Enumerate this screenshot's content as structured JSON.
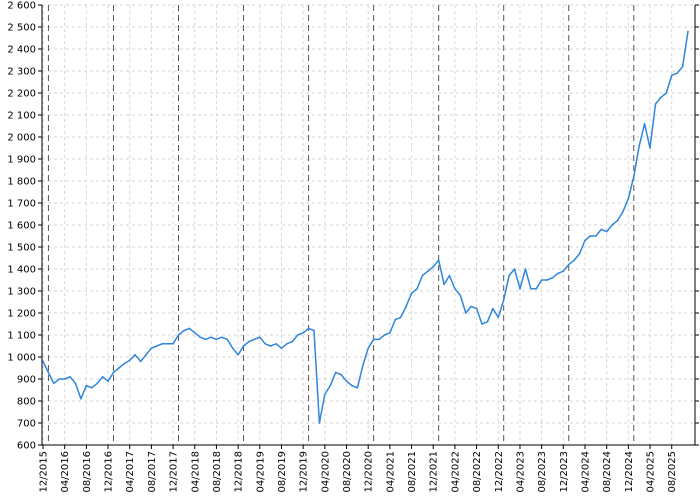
{
  "chart_data": {
    "type": "line",
    "title": "",
    "xlabel": "",
    "ylabel": "",
    "ylim": [
      600,
      2600
    ],
    "xlim": [
      "2015-12",
      "2025-12"
    ],
    "grid": true,
    "legend": "none",
    "line_color": "#2f86dc",
    "year_marker_color": "#555555",
    "y_ticks": [
      "600",
      "700",
      "800",
      "900",
      "1 000",
      "1 100",
      "1 200",
      "1 300",
      "1 400",
      "1 500",
      "1 600",
      "1 700",
      "1 800",
      "1 900",
      "2 000",
      "2 100",
      "2 200",
      "2 300",
      "2 400",
      "2 500",
      "2 600"
    ],
    "y_tick_values": [
      600,
      700,
      800,
      900,
      1000,
      1100,
      1200,
      1300,
      1400,
      1500,
      1600,
      1700,
      1800,
      1900,
      2000,
      2100,
      2200,
      2300,
      2400,
      2500,
      2600
    ],
    "x_ticks": [
      "12/2015",
      "04/2016",
      "08/2016",
      "12/2016",
      "04/2017",
      "08/2017",
      "12/2017",
      "04/2018",
      "08/2018",
      "12/2018",
      "04/2019",
      "08/2019",
      "12/2019",
      "04/2020",
      "08/2020",
      "12/2020",
      "04/2021",
      "08/2021",
      "12/2021",
      "04/2022",
      "08/2022",
      "12/2022",
      "04/2023",
      "08/2023",
      "12/2023",
      "04/2024",
      "08/2024",
      "12/2024",
      "04/2025",
      "08/2025"
    ],
    "year_markers": [
      "2016-01",
      "2017-01",
      "2018-01",
      "2019-01",
      "2020-01",
      "2021-01",
      "2022-01",
      "2023-01",
      "2024-01",
      "2025-01"
    ],
    "x": [
      "2015-12",
      "2016-01",
      "2016-02",
      "2016-03",
      "2016-04",
      "2016-05",
      "2016-06",
      "2016-07",
      "2016-08",
      "2016-09",
      "2016-10",
      "2016-11",
      "2016-12",
      "2017-01",
      "2017-02",
      "2017-03",
      "2017-04",
      "2017-05",
      "2017-06",
      "2017-07",
      "2017-08",
      "2017-09",
      "2017-10",
      "2017-11",
      "2017-12",
      "2018-01",
      "2018-02",
      "2018-03",
      "2018-04",
      "2018-05",
      "2018-06",
      "2018-07",
      "2018-08",
      "2018-09",
      "2018-10",
      "2018-11",
      "2018-12",
      "2019-01",
      "2019-02",
      "2019-03",
      "2019-04",
      "2019-05",
      "2019-06",
      "2019-07",
      "2019-08",
      "2019-09",
      "2019-10",
      "2019-11",
      "2019-12",
      "2020-01",
      "2020-02",
      "2020-03",
      "2020-04",
      "2020-05",
      "2020-06",
      "2020-07",
      "2020-08",
      "2020-09",
      "2020-10",
      "2020-11",
      "2020-12",
      "2021-01",
      "2021-02",
      "2021-03",
      "2021-04",
      "2021-05",
      "2021-06",
      "2021-07",
      "2021-08",
      "2021-09",
      "2021-10",
      "2021-11",
      "2021-12",
      "2022-01",
      "2022-02",
      "2022-03",
      "2022-04",
      "2022-05",
      "2022-06",
      "2022-07",
      "2022-08",
      "2022-09",
      "2022-10",
      "2022-11",
      "2022-12",
      "2023-01",
      "2023-02",
      "2023-03",
      "2023-04",
      "2023-05",
      "2023-06",
      "2023-07",
      "2023-08",
      "2023-09",
      "2023-10",
      "2023-11",
      "2023-12",
      "2024-01",
      "2024-02",
      "2024-03",
      "2024-04",
      "2024-05",
      "2024-06",
      "2024-07",
      "2024-08",
      "2024-09",
      "2024-10",
      "2024-11",
      "2024-12",
      "2025-01",
      "2025-02",
      "2025-03",
      "2025-04",
      "2025-05",
      "2025-06",
      "2025-07",
      "2025-08",
      "2025-09",
      "2025-10",
      "2025-11"
    ],
    "values": [
      980,
      930,
      880,
      900,
      900,
      910,
      880,
      810,
      870,
      860,
      880,
      910,
      890,
      930,
      950,
      970,
      985,
      1010,
      980,
      1010,
      1040,
      1050,
      1060,
      1060,
      1060,
      1100,
      1120,
      1130,
      1110,
      1090,
      1080,
      1090,
      1080,
      1090,
      1080,
      1040,
      1010,
      1050,
      1070,
      1080,
      1090,
      1060,
      1050,
      1060,
      1040,
      1060,
      1070,
      1100,
      1110,
      1130,
      1120,
      700,
      830,
      870,
      930,
      920,
      890,
      870,
      860,
      960,
      1040,
      1080,
      1080,
      1100,
      1110,
      1170,
      1180,
      1230,
      1290,
      1310,
      1370,
      1390,
      1410,
      1440,
      1330,
      1370,
      1310,
      1280,
      1200,
      1230,
      1220,
      1150,
      1160,
      1220,
      1180,
      1260,
      1370,
      1400,
      1310,
      1400,
      1310,
      1310,
      1350,
      1350,
      1360,
      1380,
      1390,
      1420,
      1440,
      1470,
      1530,
      1550,
      1550,
      1580,
      1570,
      1600,
      1620,
      1660,
      1720,
      1820,
      1960,
      2060,
      1950,
      2150,
      2180,
      2200,
      2280,
      2290,
      2320,
      2480
    ]
  }
}
